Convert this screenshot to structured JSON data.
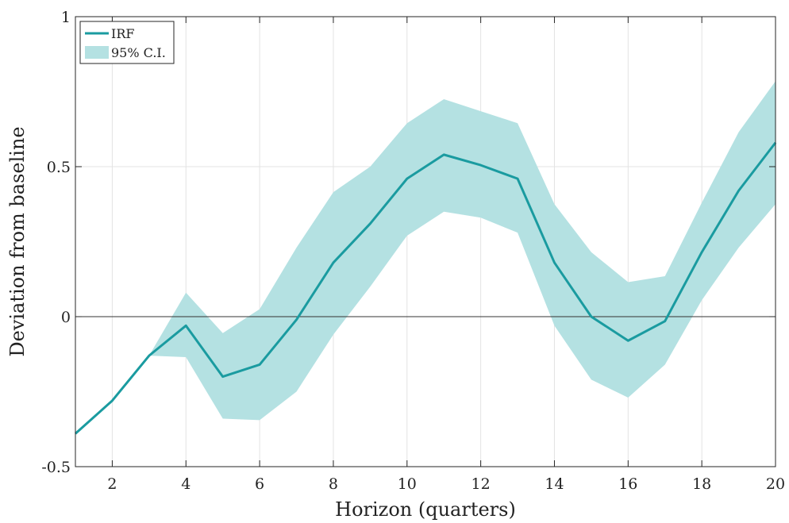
{
  "chart_data": {
    "type": "line",
    "xlabel": "Horizon (quarters)",
    "ylabel": "Deviation from baseline",
    "xlim": [
      1,
      20
    ],
    "ylim": [
      -0.5,
      1
    ],
    "x_ticks": [
      2,
      4,
      6,
      8,
      10,
      12,
      14,
      16,
      18,
      20
    ],
    "y_ticks": [
      -0.5,
      0,
      0.5,
      1
    ],
    "y_tick_labels": [
      "-0.5",
      "0",
      "0.5",
      "1"
    ],
    "grid": true,
    "legend_position": "top-left",
    "colors": {
      "line": "#1a9ba0",
      "band": "#b4e1e2",
      "zero_line": "#333333"
    },
    "x": [
      1,
      2,
      3,
      4,
      5,
      6,
      7,
      8,
      9,
      10,
      11,
      12,
      13,
      14,
      15,
      16,
      17,
      18,
      19,
      20
    ],
    "series": [
      {
        "name": "IRF",
        "values": [
          -0.39,
          -0.28,
          -0.13,
          -0.03,
          -0.2,
          -0.16,
          -0.01,
          0.18,
          0.31,
          0.46,
          0.54,
          0.505,
          0.46,
          0.18,
          0.0,
          -0.08,
          -0.015,
          0.215,
          0.42,
          0.58
        ]
      }
    ],
    "band": {
      "name": "95% C.I.",
      "start_x": 3,
      "lower": [
        -0.13,
        -0.135,
        -0.34,
        -0.345,
        -0.25,
        -0.06,
        0.1,
        0.27,
        0.35,
        0.33,
        0.28,
        -0.03,
        -0.21,
        -0.27,
        -0.16,
        0.055,
        0.23,
        0.375
      ],
      "upper": [
        -0.13,
        0.08,
        -0.055,
        0.025,
        0.23,
        0.415,
        0.5,
        0.645,
        0.725,
        0.685,
        0.645,
        0.375,
        0.215,
        0.115,
        0.135,
        0.38,
        0.615,
        0.785
      ]
    }
  }
}
